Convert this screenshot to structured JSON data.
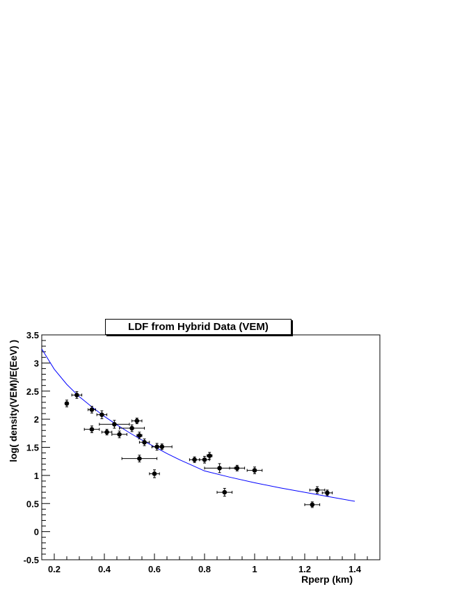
{
  "chart_data": {
    "type": "scatter",
    "title": "LDF from Hybrid Data (VEM)",
    "xlabel": "Rperp (km)",
    "ylabel": "log( density(VEM)/E(EeV) )",
    "xlim": [
      0.15,
      1.5
    ],
    "ylim": [
      -0.5,
      3.5
    ],
    "x_ticks": [
      "0.2",
      "0.4",
      "0.6",
      "0.8",
      "1",
      "1.2",
      "1.4"
    ],
    "y_ticks": [
      "-0.5",
      "0",
      "0.5",
      "1",
      "1.5",
      "2",
      "2.5",
      "3",
      "3.5"
    ],
    "grid": false,
    "series": [
      {
        "type": "points_with_errors",
        "color": "#000000",
        "points": [
          {
            "x": 0.25,
            "y": 2.28,
            "xerr": 0.0,
            "yerr": 0.06
          },
          {
            "x": 0.29,
            "y": 2.43,
            "xerr": 0.02,
            "yerr": 0.06
          },
          {
            "x": 0.35,
            "y": 2.17,
            "xerr": 0.015,
            "yerr": 0.06
          },
          {
            "x": 0.35,
            "y": 1.82,
            "xerr": 0.03,
            "yerr": 0.06
          },
          {
            "x": 0.39,
            "y": 2.08,
            "xerr": 0.02,
            "yerr": 0.07
          },
          {
            "x": 0.41,
            "y": 1.77,
            "xerr": 0.02,
            "yerr": 0.05
          },
          {
            "x": 0.44,
            "y": 1.91,
            "xerr": 0.06,
            "yerr": 0.07
          },
          {
            "x": 0.46,
            "y": 1.73,
            "xerr": 0.03,
            "yerr": 0.06
          },
          {
            "x": 0.51,
            "y": 1.84,
            "xerr": 0.05,
            "yerr": 0.06
          },
          {
            "x": 0.53,
            "y": 1.97,
            "xerr": 0.02,
            "yerr": 0.05
          },
          {
            "x": 0.54,
            "y": 1.71,
            "xerr": 0.01,
            "yerr": 0.06
          },
          {
            "x": 0.54,
            "y": 1.3,
            "xerr": 0.07,
            "yerr": 0.06
          },
          {
            "x": 0.56,
            "y": 1.59,
            "xerr": 0.02,
            "yerr": 0.06
          },
          {
            "x": 0.6,
            "y": 1.03,
            "xerr": 0.02,
            "yerr": 0.07
          },
          {
            "x": 0.61,
            "y": 1.51,
            "xerr": 0.02,
            "yerr": 0.06
          },
          {
            "x": 0.63,
            "y": 1.51,
            "xerr": 0.04,
            "yerr": 0.05
          },
          {
            "x": 0.76,
            "y": 1.28,
            "xerr": 0.02,
            "yerr": 0.05
          },
          {
            "x": 0.8,
            "y": 1.28,
            "xerr": 0.02,
            "yerr": 0.06
          },
          {
            "x": 0.82,
            "y": 1.35,
            "xerr": 0.01,
            "yerr": 0.06
          },
          {
            "x": 0.86,
            "y": 1.13,
            "xerr": 0.06,
            "yerr": 0.08
          },
          {
            "x": 0.88,
            "y": 0.7,
            "xerr": 0.03,
            "yerr": 0.07
          },
          {
            "x": 0.93,
            "y": 1.13,
            "xerr": 0.03,
            "yerr": 0.05
          },
          {
            "x": 1.0,
            "y": 1.09,
            "xerr": 0.03,
            "yerr": 0.06
          },
          {
            "x": 1.23,
            "y": 0.48,
            "xerr": 0.03,
            "yerr": 0.05
          },
          {
            "x": 1.25,
            "y": 0.74,
            "xerr": 0.03,
            "yerr": 0.06
          },
          {
            "x": 1.29,
            "y": 0.69,
            "xerr": 0.02,
            "yerr": 0.05
          }
        ]
      },
      {
        "type": "fit_line",
        "color": "#0000ff",
        "x": [
          0.15,
          0.2,
          0.25,
          0.3,
          0.35,
          0.4,
          0.45,
          0.5,
          0.55,
          0.6,
          0.65,
          0.7,
          0.75,
          0.8,
          0.9,
          1.0,
          1.1,
          1.2,
          1.3,
          1.4
        ],
        "y": [
          3.25,
          2.89,
          2.62,
          2.4,
          2.22,
          2.05,
          1.9,
          1.76,
          1.63,
          1.51,
          1.39,
          1.28,
          1.18,
          1.08,
          0.97,
          0.87,
          0.78,
          0.7,
          0.62,
          0.54
        ]
      }
    ]
  }
}
